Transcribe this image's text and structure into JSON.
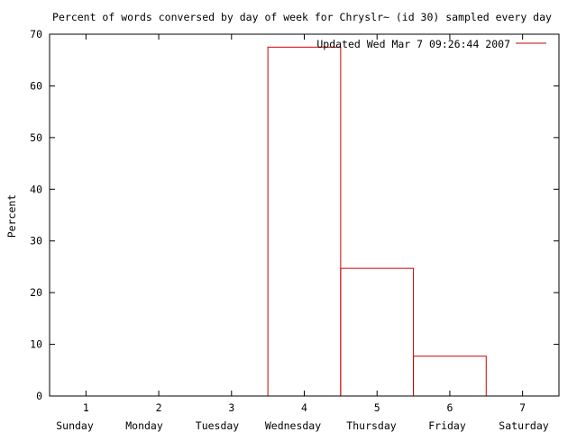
{
  "chart_data": {
    "type": "bar",
    "title": "Percent of words conversed by day of week for Chryslr~ (id 30) sampled every day",
    "ylabel": "Percent",
    "xlabel": "",
    "x": [
      1,
      2,
      3,
      4,
      5,
      6,
      7
    ],
    "xlim": [
      0.5,
      7.5
    ],
    "ylim": [
      0,
      70
    ],
    "yticks": [
      0,
      10,
      20,
      30,
      40,
      50,
      60,
      70
    ],
    "day_labels": [
      "Sunday",
      "Monday",
      "Tuesday",
      "Wednesday",
      "Thursday",
      "Friday",
      "Saturday"
    ],
    "series": [
      {
        "name": "Updated Wed Mar  7 09:26:44 2007",
        "color": "#cc0000",
        "values": [
          0,
          0,
          0,
          67.5,
          24.7,
          7.7,
          0
        ]
      }
    ],
    "legend_position": "top-right",
    "grid": false
  }
}
